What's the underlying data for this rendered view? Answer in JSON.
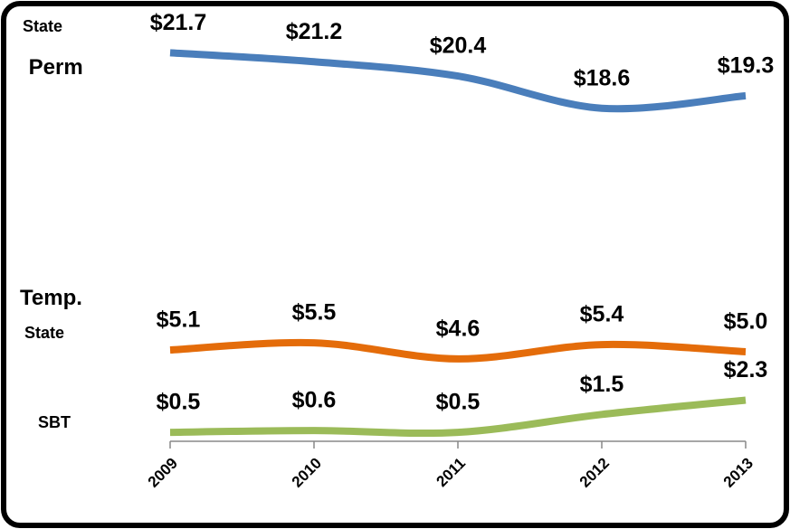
{
  "chart_data": {
    "type": "line",
    "categories": [
      "2009",
      "2010",
      "2011",
      "2012",
      "2013"
    ],
    "series": [
      {
        "name": "State Perm",
        "color": "#4a7ebb",
        "values": [
          21.7,
          21.2,
          20.4,
          18.6,
          19.3
        ],
        "value_labels": [
          "$21.7",
          "$21.2",
          "$20.4",
          "$18.6",
          "$19.3"
        ]
      },
      {
        "name": "Temp. State",
        "color": "#e46c0a",
        "values": [
          5.1,
          5.5,
          4.6,
          5.4,
          5.0
        ],
        "value_labels": [
          "$5.1",
          "$5.5",
          "$4.6",
          "$5.4",
          "$5.0"
        ]
      },
      {
        "name": "SBT",
        "color": "#9bbb59",
        "values": [
          0.5,
          0.6,
          0.5,
          1.5,
          2.3
        ],
        "value_labels": [
          "$0.5",
          "$0.6",
          "$0.5",
          "$1.5",
          "$2.3"
        ]
      }
    ]
  }
}
